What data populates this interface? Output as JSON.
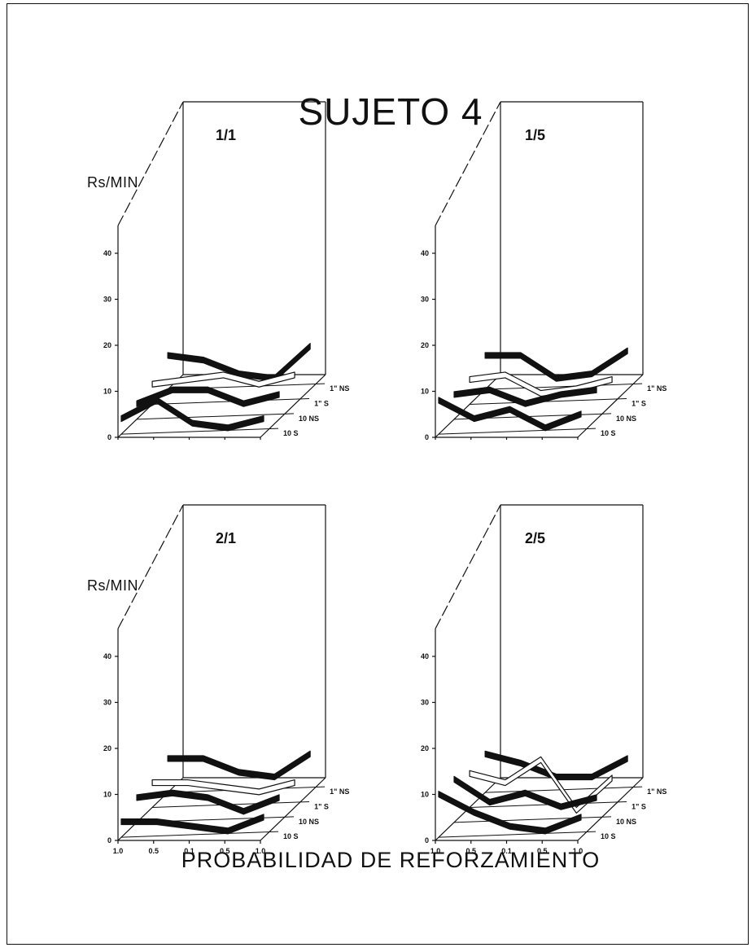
{
  "title": "SUJETO 4",
  "x_axis_title": "PROBABILIDAD DE REFORZAMIENTO",
  "y_axis_label": "Rs/MIN",
  "y_ticks": [
    "0",
    "10",
    "20",
    "30",
    "40"
  ],
  "x_ticks": [
    "1.0",
    "0.5",
    "0.1",
    "0.5",
    "1.0"
  ],
  "depth_ticks": [
    "10 S",
    "10 NS",
    "1\" S",
    "1\" NS"
  ],
  "colors": {
    "ink": "#111111",
    "ribbon_dark": "#111111",
    "ribbon_light": "#ffffff"
  },
  "chart_data": [
    {
      "type": "line",
      "title": "1/1",
      "ylabel": "Rs/MIN",
      "ylim": [
        0,
        45
      ],
      "categories": [
        "1.0",
        "0.5",
        "0.1",
        "0.5",
        "1.0"
      ],
      "series": [
        {
          "name": "10 S",
          "values": [
            4,
            8,
            3,
            2,
            4
          ]
        },
        {
          "name": "10 NS",
          "values": [
            4,
            7,
            7,
            4,
            6
          ]
        },
        {
          "name": "1\" S",
          "values": [
            5,
            6,
            7,
            5,
            7
          ]
        },
        {
          "name": "1\" NS",
          "values": [
            8,
            7,
            4,
            3,
            10
          ]
        }
      ]
    },
    {
      "type": "line",
      "title": "1/5",
      "ylabel": "",
      "ylim": [
        0,
        45
      ],
      "categories": [
        "1.0",
        "0.5",
        "0.1",
        "0.5",
        "1.0"
      ],
      "series": [
        {
          "name": "10 S",
          "values": [
            8,
            4,
            6,
            2,
            5
          ]
        },
        {
          "name": "10 NS",
          "values": [
            6,
            7,
            4,
            6,
            7
          ]
        },
        {
          "name": "1\" S",
          "values": [
            6,
            7,
            3,
            4,
            6
          ]
        },
        {
          "name": "1\" NS",
          "values": [
            8,
            8,
            3,
            4,
            9
          ]
        }
      ]
    },
    {
      "type": "line",
      "title": "2/1",
      "ylabel": "Rs/MIN",
      "ylim": [
        0,
        45
      ],
      "categories": [
        "1.0",
        "0.5",
        "0.1",
        "0.5",
        "1.0"
      ],
      "series": [
        {
          "name": "10 S",
          "values": [
            4,
            4,
            3,
            2,
            5
          ]
        },
        {
          "name": "10 NS",
          "values": [
            6,
            7,
            6,
            3,
            6
          ]
        },
        {
          "name": "1\" S",
          "values": [
            6,
            6,
            5,
            4,
            6
          ]
        },
        {
          "name": "1\" NS",
          "values": [
            8,
            8,
            5,
            4,
            9
          ]
        }
      ]
    },
    {
      "type": "line",
      "title": "2/5",
      "ylabel": "",
      "ylim": [
        0,
        45
      ],
      "categories": [
        "1.0",
        "0.5",
        "0.1",
        "0.5",
        "1.0"
      ],
      "series": [
        {
          "name": "10 S",
          "values": [
            10,
            6,
            3,
            2,
            5
          ]
        },
        {
          "name": "10 NS",
          "values": [
            10,
            5,
            7,
            4,
            6
          ]
        },
        {
          "name": "1\" S",
          "values": [
            8,
            6,
            11,
            0,
            7
          ]
        },
        {
          "name": "1\" NS",
          "values": [
            9,
            7,
            4,
            4,
            8
          ]
        }
      ]
    }
  ]
}
